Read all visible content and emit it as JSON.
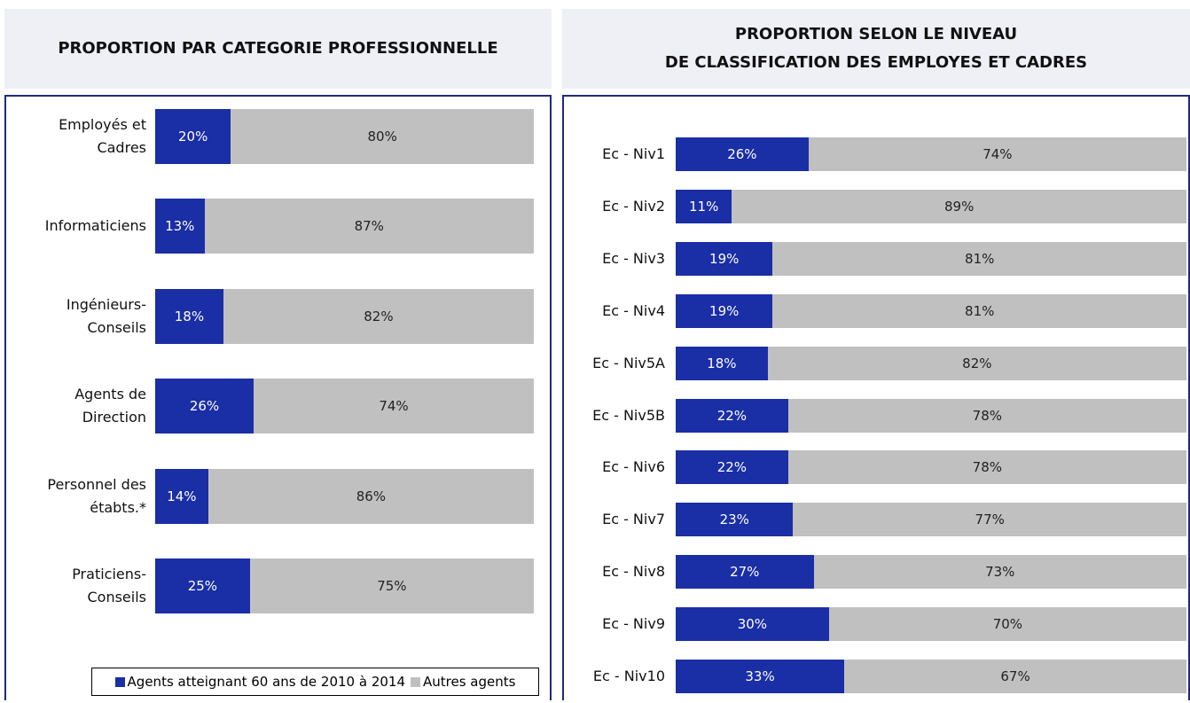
{
  "chart_data": [
    {
      "type": "bar",
      "orientation": "horizontal",
      "stacked": true,
      "title": "PROPORTION PAR CATEGORIE PROFESSIONNELLE",
      "categories": [
        "Employés et\nCadres",
        "Informaticiens",
        "Ingénieurs-\nConseils",
        "Agents de\nDirection",
        "Personnel des\nétabts.*",
        "Praticiens-\nConseils"
      ],
      "series": [
        {
          "name": "Agents atteignant 60 ans de 2010 à 2014",
          "color": "#1a2ea6",
          "values": [
            20,
            13,
            18,
            26,
            14,
            25
          ],
          "value_labels": [
            "20%",
            "13%",
            "18%",
            "26%",
            "14%",
            "25%"
          ]
        },
        {
          "name": "Autres agents",
          "color": "#c0c0c0",
          "values": [
            80,
            87,
            82,
            74,
            86,
            75
          ],
          "value_labels": [
            "80%",
            "87%",
            "82%",
            "74%",
            "86%",
            "75%"
          ]
        }
      ],
      "legend": "bottom-right"
    },
    {
      "type": "bar",
      "orientation": "horizontal",
      "stacked": true,
      "title": "PROPORTION SELON LE NIVEAU\nDE CLASSIFICATION DES EMPLOYES ET CADRES",
      "categories": [
        "Ec - Niv1",
        "Ec - Niv2",
        "Ec - Niv3",
        "Ec - Niv4",
        "Ec - Niv5A",
        "Ec - Niv5B",
        "Ec - Niv6",
        "Ec - Niv7",
        "Ec - Niv8",
        "Ec - Niv9",
        "Ec - Niv10"
      ],
      "series": [
        {
          "color": "#1a2ea6",
          "values": [
            26,
            11,
            19,
            19,
            18,
            22,
            22,
            23,
            27,
            30,
            33
          ],
          "value_labels": [
            "26%",
            "11%",
            "19%",
            "19%",
            "18%",
            "22%",
            "22%",
            "23%",
            "27%",
            "30%",
            "33%"
          ]
        },
        {
          "color": "#c0c0c0",
          "values": [
            74,
            89,
            81,
            81,
            82,
            78,
            78,
            77,
            73,
            70,
            67
          ],
          "value_labels": [
            "74%",
            "89%",
            "81%",
            "81%",
            "82%",
            "78%",
            "78%",
            "77%",
            "73%",
            "70%",
            "67%"
          ]
        }
      ]
    }
  ]
}
